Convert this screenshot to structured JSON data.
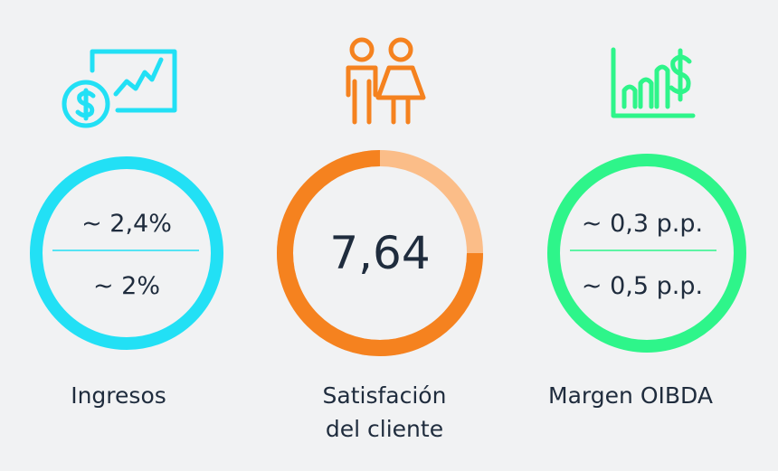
{
  "panels": [
    {
      "label": "Ingresos",
      "values": [
        "~ 2,4%",
        "~ 2%"
      ]
    },
    {
      "label_lines": [
        "Satisfación",
        "del cliente"
      ],
      "value": "7,64"
    },
    {
      "label": "Margen OIBDA",
      "values": [
        "~ 0,3 p.p.",
        "~ 0,5 p.p."
      ]
    }
  ]
}
